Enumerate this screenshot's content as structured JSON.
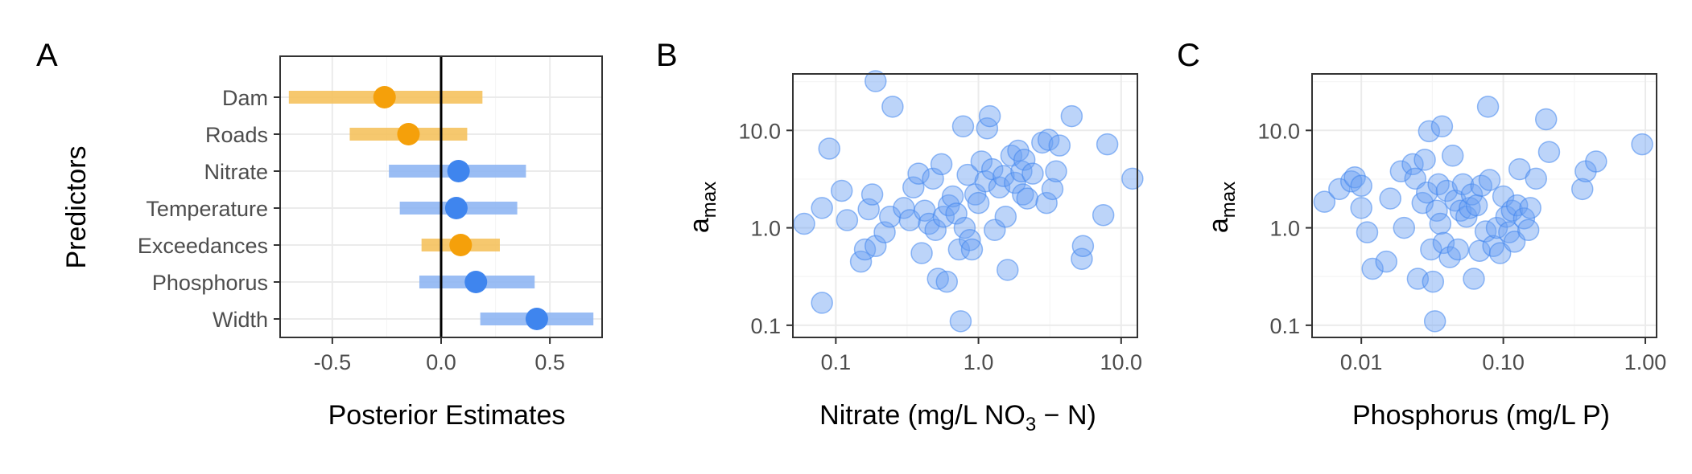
{
  "colors": {
    "orange": "#F5A00A",
    "orange_light": "#F5C25E",
    "blue": "#3F85EE",
    "blue_light": "#8FB6F3",
    "scatter_fill": "#6A9FF2",
    "zero_line": "#000000"
  },
  "chart_data": [
    {
      "panel": "A",
      "type": "scatter",
      "subtype": "coefficient-interval",
      "xlabel": "Posterior Estimates",
      "ylabel": "Predictors",
      "xlim": [
        -0.74,
        0.74
      ],
      "xticks": [
        -0.5,
        0.0,
        0.5
      ],
      "xtick_labels": [
        "-0.5",
        "0.0",
        "0.5"
      ],
      "zero_line": 0,
      "grid": true,
      "predictors": [
        {
          "name": "Dam",
          "estimate": -0.26,
          "low": -0.7,
          "high": 0.19,
          "color": "orange"
        },
        {
          "name": "Roads",
          "estimate": -0.15,
          "low": -0.42,
          "high": 0.12,
          "color": "orange"
        },
        {
          "name": "Nitrate",
          "estimate": 0.08,
          "low": -0.24,
          "high": 0.39,
          "color": "blue"
        },
        {
          "name": "Temperature",
          "estimate": 0.07,
          "low": -0.19,
          "high": 0.35,
          "color": "blue"
        },
        {
          "name": "Exceedances",
          "estimate": 0.09,
          "low": -0.09,
          "high": 0.27,
          "color": "orange"
        },
        {
          "name": "Phosphorus",
          "estimate": 0.16,
          "low": -0.1,
          "high": 0.43,
          "color": "blue"
        },
        {
          "name": "Width",
          "estimate": 0.44,
          "low": 0.18,
          "high": 0.7,
          "color": "blue"
        }
      ]
    },
    {
      "panel": "B",
      "type": "scatter",
      "xlabel": "Nitrate (mg/L NO3 − N)",
      "xlabel_parts": {
        "pre": "Nitrate (mg/L NO",
        "sub": "3",
        "post": " − N)"
      },
      "ylabel": "a_max",
      "ylabel_parts": {
        "main": "a",
        "sub": "max"
      },
      "x_scale": "log10",
      "y_scale": "log10",
      "xlim": [
        0.05,
        13
      ],
      "ylim": [
        0.075,
        38
      ],
      "xticks": [
        0.1,
        1.0,
        10.0
      ],
      "xtick_labels": [
        "0.1",
        "1.0",
        "10.0"
      ],
      "yticks": [
        0.1,
        1.0,
        10.0
      ],
      "ytick_labels": [
        "0.1",
        "1.0",
        "10.0"
      ],
      "grid": true,
      "points": [
        [
          0.06,
          1.1
        ],
        [
          0.09,
          6.5
        ],
        [
          0.08,
          1.6
        ],
        [
          0.11,
          2.4
        ],
        [
          0.12,
          1.2
        ],
        [
          0.15,
          0.45
        ],
        [
          0.16,
          0.6
        ],
        [
          0.17,
          1.55
        ],
        [
          0.18,
          2.2
        ],
        [
          0.19,
          0.65
        ],
        [
          0.19,
          32.0
        ],
        [
          0.25,
          17.5
        ],
        [
          0.08,
          0.17
        ],
        [
          0.22,
          0.9
        ],
        [
          0.24,
          1.3
        ],
        [
          0.3,
          1.6
        ],
        [
          0.33,
          1.2
        ],
        [
          0.35,
          2.6
        ],
        [
          0.38,
          3.6
        ],
        [
          0.4,
          0.55
        ],
        [
          0.42,
          1.5
        ],
        [
          0.45,
          1.1
        ],
        [
          0.48,
          3.2
        ],
        [
          0.5,
          0.95
        ],
        [
          0.52,
          0.3
        ],
        [
          0.55,
          4.5
        ],
        [
          0.57,
          1.3
        ],
        [
          0.6,
          0.28
        ],
        [
          0.62,
          1.7
        ],
        [
          0.66,
          2.1
        ],
        [
          0.7,
          1.4
        ],
        [
          0.73,
          0.6
        ],
        [
          0.75,
          0.11
        ],
        [
          0.78,
          11.0
        ],
        [
          0.8,
          1.0
        ],
        [
          0.84,
          3.5
        ],
        [
          0.87,
          0.75
        ],
        [
          0.9,
          0.6
        ],
        [
          0.95,
          2.2
        ],
        [
          1.0,
          1.8
        ],
        [
          1.05,
          4.8
        ],
        [
          1.12,
          3.0
        ],
        [
          1.15,
          10.5
        ],
        [
          1.2,
          14.0
        ],
        [
          1.25,
          4.0
        ],
        [
          1.3,
          0.95
        ],
        [
          1.4,
          2.6
        ],
        [
          1.5,
          3.4
        ],
        [
          1.55,
          1.3
        ],
        [
          1.6,
          0.37
        ],
        [
          1.7,
          5.5
        ],
        [
          1.8,
          2.9
        ],
        [
          1.9,
          6.2
        ],
        [
          2.0,
          3.8
        ],
        [
          2.05,
          2.2
        ],
        [
          2.1,
          5.0
        ],
        [
          2.2,
          2.0
        ],
        [
          2.4,
          3.6
        ],
        [
          2.8,
          7.5
        ],
        [
          3.0,
          1.8
        ],
        [
          3.1,
          8.0
        ],
        [
          3.3,
          2.5
        ],
        [
          3.5,
          3.8
        ],
        [
          3.7,
          7.0
        ],
        [
          4.5,
          14.0
        ],
        [
          5.3,
          0.48
        ],
        [
          5.4,
          0.65
        ],
        [
          7.5,
          1.35
        ],
        [
          8.0,
          7.2
        ],
        [
          12.0,
          3.2
        ]
      ]
    },
    {
      "panel": "C",
      "type": "scatter",
      "xlabel": "Phosphorus (mg/L P)",
      "ylabel": "a_max",
      "ylabel_parts": {
        "main": "a",
        "sub": "max"
      },
      "x_scale": "log10",
      "y_scale": "log10",
      "xlim": [
        0.0045,
        1.2
      ],
      "ylim": [
        0.075,
        38
      ],
      "xticks": [
        0.01,
        0.1,
        1.0
      ],
      "xtick_labels": [
        "0.01",
        "0.10",
        "1.00"
      ],
      "yticks": [
        0.1,
        1.0,
        10.0
      ],
      "ytick_labels": [
        "0.1",
        "1.0",
        "10.0"
      ],
      "grid": true,
      "points": [
        [
          0.0055,
          1.85
        ],
        [
          0.007,
          2.5
        ],
        [
          0.0085,
          3.0
        ],
        [
          0.009,
          3.3
        ],
        [
          0.01,
          2.7
        ],
        [
          0.01,
          1.6
        ],
        [
          0.011,
          0.9
        ],
        [
          0.012,
          0.38
        ],
        [
          0.015,
          0.45
        ],
        [
          0.016,
          2.0
        ],
        [
          0.019,
          3.8
        ],
        [
          0.02,
          1.0
        ],
        [
          0.023,
          4.5
        ],
        [
          0.024,
          3.2
        ],
        [
          0.025,
          0.3
        ],
        [
          0.027,
          1.8
        ],
        [
          0.028,
          5.0
        ],
        [
          0.029,
          2.3
        ],
        [
          0.03,
          9.8
        ],
        [
          0.031,
          0.6
        ],
        [
          0.032,
          0.28
        ],
        [
          0.033,
          0.11
        ],
        [
          0.034,
          1.5
        ],
        [
          0.035,
          2.8
        ],
        [
          0.036,
          1.1
        ],
        [
          0.037,
          11.0
        ],
        [
          0.038,
          0.7
        ],
        [
          0.04,
          2.4
        ],
        [
          0.042,
          0.5
        ],
        [
          0.044,
          5.5
        ],
        [
          0.046,
          1.9
        ],
        [
          0.048,
          0.6
        ],
        [
          0.05,
          1.5
        ],
        [
          0.052,
          2.8
        ],
        [
          0.055,
          1.3
        ],
        [
          0.058,
          1.6
        ],
        [
          0.06,
          2.2
        ],
        [
          0.062,
          0.3
        ],
        [
          0.065,
          1.7
        ],
        [
          0.068,
          0.58
        ],
        [
          0.07,
          2.7
        ],
        [
          0.075,
          0.92
        ],
        [
          0.078,
          17.5
        ],
        [
          0.08,
          3.1
        ],
        [
          0.085,
          0.65
        ],
        [
          0.09,
          1.0
        ],
        [
          0.095,
          0.55
        ],
        [
          0.1,
          2.1
        ],
        [
          0.105,
          1.3
        ],
        [
          0.11,
          0.9
        ],
        [
          0.115,
          1.5
        ],
        [
          0.12,
          0.72
        ],
        [
          0.125,
          1.7
        ],
        [
          0.13,
          4.0
        ],
        [
          0.14,
          1.25
        ],
        [
          0.15,
          0.95
        ],
        [
          0.155,
          1.6
        ],
        [
          0.17,
          3.2
        ],
        [
          0.2,
          13.0
        ],
        [
          0.21,
          6.0
        ],
        [
          0.36,
          2.5
        ],
        [
          0.38,
          3.8
        ],
        [
          0.45,
          4.8
        ],
        [
          0.95,
          7.2
        ]
      ]
    }
  ]
}
